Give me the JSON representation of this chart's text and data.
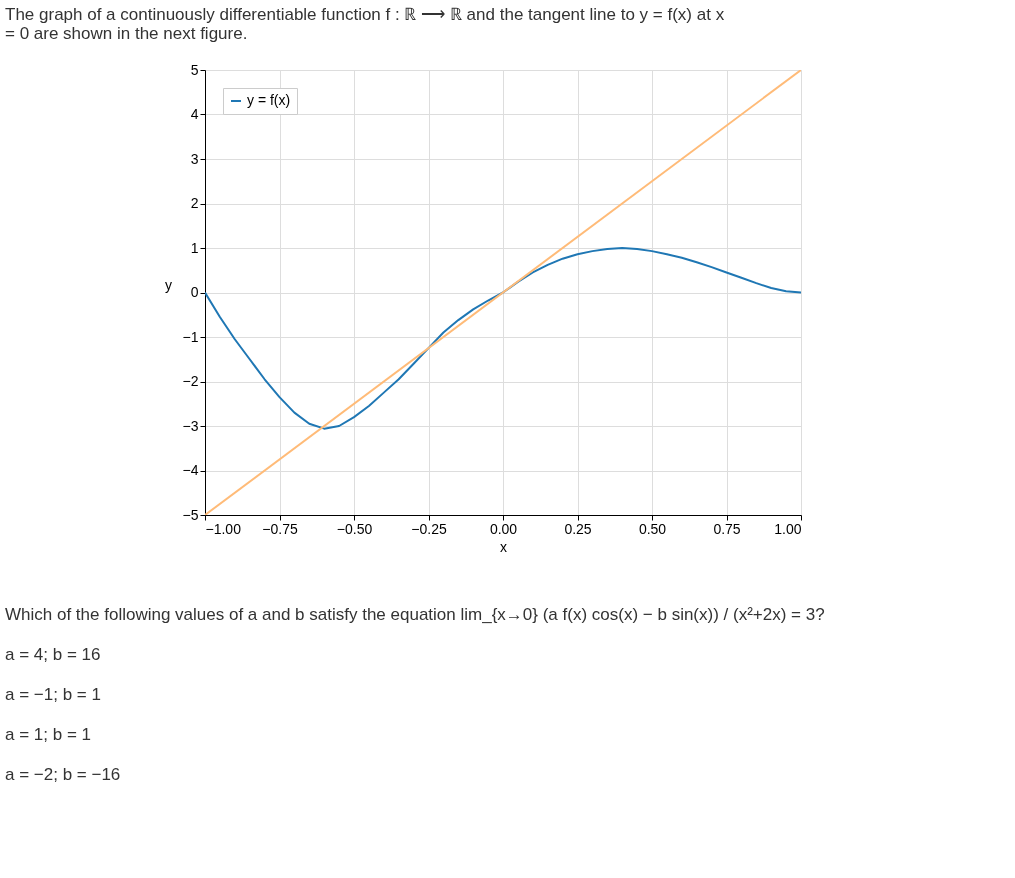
{
  "chart_data": {
    "type": "line",
    "title": "The graph of a continuously differentiable function f : ℝ ⟶ ℝ and the tangent line to y = f(x) at x = 0 are shown in the next figure.",
    "xlabel": "x",
    "ylabel": "y",
    "series": [
      {
        "name": "y = f(x)",
        "color": "#1f77b4",
        "x": [
          -1,
          -0.95,
          -0.9,
          -0.85,
          -0.8,
          -0.75,
          -0.7,
          -0.65,
          -0.6,
          -0.55,
          -0.5,
          -0.45,
          -0.4,
          -0.35,
          -0.3,
          -0.25,
          -0.2,
          -0.15,
          -0.1,
          -0.05,
          0,
          0.05,
          0.1,
          0.15,
          0.2,
          0.25,
          0.3,
          0.35,
          0.4,
          0.45,
          0.5,
          0.55,
          0.6,
          0.65,
          0.7,
          0.75,
          0.8,
          0.85,
          0.9,
          0.95,
          1
        ],
        "values": [
          0,
          -0.55,
          -1.05,
          -1.5,
          -1.95,
          -2.35,
          -2.7,
          -2.95,
          -3.06,
          -3.0,
          -2.8,
          -2.55,
          -2.25,
          -1.95,
          -1.6,
          -1.25,
          -0.9,
          -0.62,
          -0.38,
          -0.18,
          0,
          0.24,
          0.45,
          0.62,
          0.76,
          0.86,
          0.93,
          0.98,
          1.0,
          0.98,
          0.93,
          0.86,
          0.78,
          0.68,
          0.57,
          0.45,
          0.33,
          0.21,
          0.1,
          0.03,
          0
        ]
      },
      {
        "color": "#ffbb78",
        "x": [
          -1,
          1
        ],
        "values": [
          -5,
          5
        ]
      }
    ],
    "xlim": [
      -1,
      1
    ],
    "ylim": [
      -5,
      5
    ],
    "xticks": [
      {
        "value": -1,
        "label": "−1.00"
      },
      {
        "value": -0.75,
        "label": "−0.75"
      },
      {
        "value": -0.5,
        "label": "−0.50"
      },
      {
        "value": -0.25,
        "label": "−0.25"
      },
      {
        "value": 0,
        "label": "0.00"
      },
      {
        "value": 0.25,
        "label": "0.25"
      },
      {
        "value": 0.5,
        "label": "0.50"
      },
      {
        "value": 0.75,
        "label": "0.75"
      },
      {
        "value": 1,
        "label": "1.00"
      }
    ],
    "yticks": [
      {
        "value": -5,
        "label": "−5"
      },
      {
        "value": -4,
        "label": "−4"
      },
      {
        "value": -3,
        "label": "−3"
      },
      {
        "value": -2,
        "label": "−2"
      },
      {
        "value": -1,
        "label": "−1"
      },
      0,
      1,
      2,
      3,
      4,
      5
    ],
    "grid": true,
    "legend": "top left",
    "annotations": [
      "Which of the following values of a and b satisfy the equation lim_{x→0} (a f(x) cos(x) − b sin(x)) / (x²+2x) = 3?",
      "a = 4; b = 16",
      "a = −1; b = 1",
      "a = 1; b = 1",
      "a = −2; b = −16"
    ]
  }
}
